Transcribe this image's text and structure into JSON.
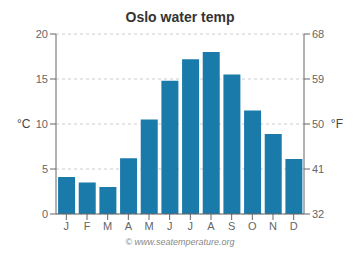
{
  "chart_data": {
    "type": "bar",
    "title": "Oslo water temp",
    "categories": [
      "J",
      "F",
      "M",
      "A",
      "M",
      "J",
      "J",
      "A",
      "S",
      "O",
      "N",
      "D"
    ],
    "values": [
      4.1,
      3.5,
      3.0,
      6.2,
      10.5,
      14.8,
      17.2,
      18.0,
      15.5,
      11.5,
      8.9,
      6.1
    ],
    "color": "#1a7aaa",
    "ylim": [
      0,
      20
    ],
    "yticks": [
      0,
      5,
      10,
      15,
      20
    ],
    "ylabel": "°C",
    "y2lim": [
      32,
      68
    ],
    "y2ticks": [
      32,
      41,
      50,
      59,
      68
    ],
    "y2label": "°F",
    "grid": true,
    "annotations": [
      "© www.seatemperature.org"
    ]
  }
}
